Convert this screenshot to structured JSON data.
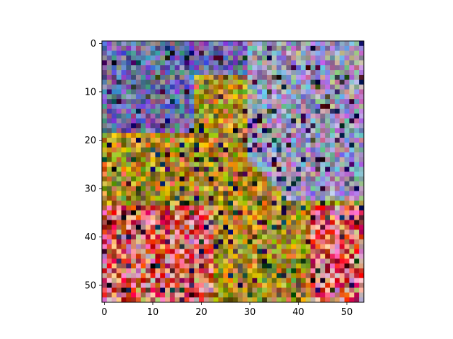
{
  "chart_data": {
    "type": "heatmap",
    "title": "",
    "xlabel": "",
    "ylabel": "",
    "grid": false,
    "legend": "none",
    "image_size": [
      54,
      54
    ],
    "xlim": [
      -0.5,
      53.5
    ],
    "ylim": [
      53.5,
      -0.5
    ],
    "y_axis_inverted": true,
    "x_ticks": [
      0,
      10,
      20,
      30,
      40,
      50
    ],
    "y_ticks": [
      0,
      10,
      20,
      30,
      40,
      50
    ],
    "x_tick_labels": [
      "0",
      "10",
      "20",
      "30",
      "40",
      "50"
    ],
    "y_tick_labels": [
      "0",
      "10",
      "20",
      "30",
      "40",
      "50"
    ],
    "palette": {
      "purple_blue": "#6f6aa8",
      "olive": "#8a7a1e",
      "golden": "#c99a2a",
      "pink": "#e79a9a",
      "red": "#c8302a",
      "grey_lavender": "#9a96b8",
      "dark_navy": "#1d1a3a"
    }
  }
}
